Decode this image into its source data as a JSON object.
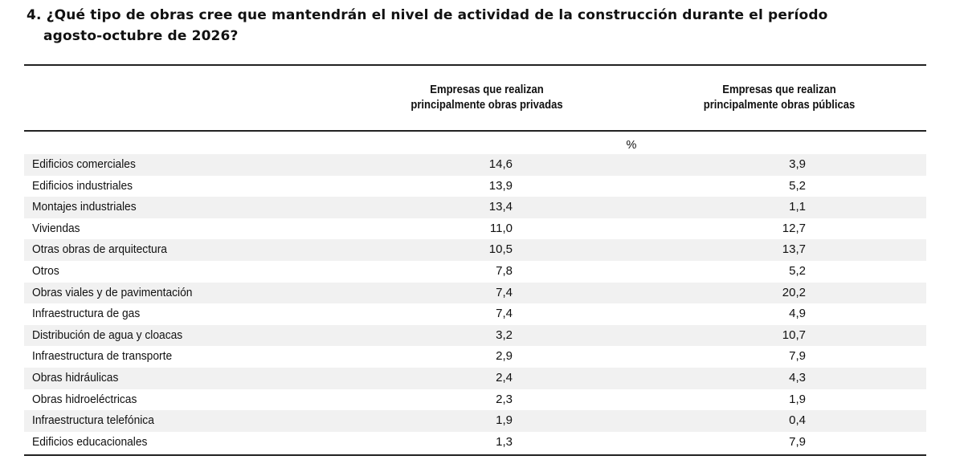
{
  "question": {
    "line1": "4. ¿Qué tipo de obras cree que mantendrán el nivel de actividad de la construcción durante el período",
    "line2": "agosto-octubre de 2026?"
  },
  "table": {
    "headers": {
      "col1_line1": "Empresas que realizan",
      "col1_line2": "principalmente obras privadas",
      "col2_line1": "Empresas que realizan",
      "col2_line2": "principalmente obras públicas"
    },
    "unit": "%",
    "rows": [
      {
        "label": "Edificios comerciales",
        "privadas": "14,6",
        "publicas": "3,9"
      },
      {
        "label": "Edificios industriales",
        "privadas": "13,9",
        "publicas": "5,2"
      },
      {
        "label": "Montajes industriales",
        "privadas": "13,4",
        "publicas": "1,1"
      },
      {
        "label": "Viviendas",
        "privadas": "11,0",
        "publicas": "12,7"
      },
      {
        "label": "Otras obras de arquitectura",
        "privadas": "10,5",
        "publicas": "13,7"
      },
      {
        "label": "Otros",
        "privadas": "7,8",
        "publicas": "5,2"
      },
      {
        "label": "Obras viales y de pavimentación",
        "privadas": "7,4",
        "publicas": "20,2"
      },
      {
        "label": "Infraestructura de gas",
        "privadas": "7,4",
        "publicas": "4,9"
      },
      {
        "label": "Distribución de agua y cloacas",
        "privadas": "3,2",
        "publicas": "10,7"
      },
      {
        "label": "Infraestructura de transporte",
        "privadas": "2,9",
        "publicas": "7,9"
      },
      {
        "label": "Obras hidráulicas",
        "privadas": "2,4",
        "publicas": "4,3"
      },
      {
        "label": "Obras hidroeléctricas",
        "privadas": "2,3",
        "publicas": "1,9"
      },
      {
        "label": "Infraestructura telefónica",
        "privadas": "1,9",
        "publicas": "0,4"
      },
      {
        "label": "Edificios educacionales",
        "privadas": "1,3",
        "publicas": "7,9"
      }
    ]
  }
}
